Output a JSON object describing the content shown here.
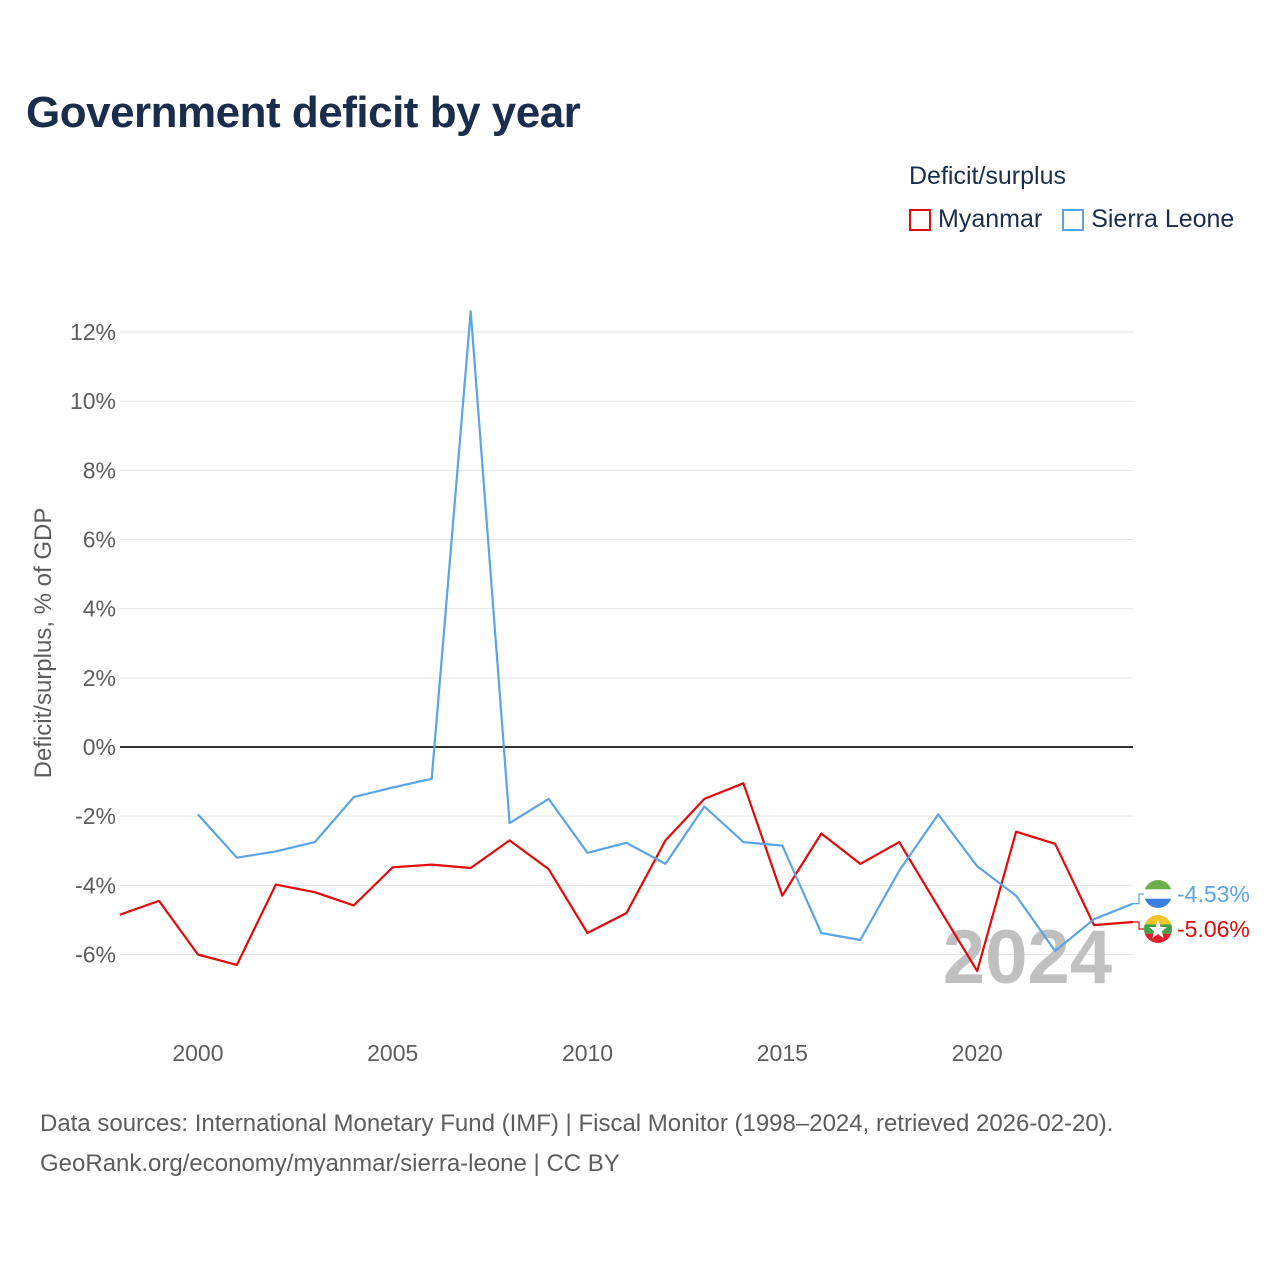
{
  "colors": {
    "myanmar": "#e30a0a",
    "sierra_leone": "#5ba4e6",
    "zero_line": "#333333",
    "grid": "#e6e6e6",
    "watermark": "#c0c0c0"
  },
  "chart_data": {
    "type": "line",
    "title": "Government deficit by year",
    "ylabel": "Deficit/surplus, % of GDP",
    "xlabel": "",
    "legend_title": "Deficit/surplus",
    "legend_position": "top-right",
    "xlim": [
      1998,
      2024
    ],
    "ylim": [
      -8,
      12.6
    ],
    "yticks": [
      -6,
      -4,
      -2,
      0,
      2,
      4,
      6,
      8,
      10,
      12
    ],
    "ytick_labels": [
      "-6%",
      "-4%",
      "-2%",
      "0%",
      "2%",
      "4%",
      "6%",
      "8%",
      "10%",
      "12%"
    ],
    "xticks": [
      2000,
      2005,
      2010,
      2015,
      2020
    ],
    "xtick_labels": [
      "2000",
      "2005",
      "2010",
      "2015",
      "2020"
    ],
    "grid": true,
    "year_watermark": "2024",
    "series": [
      {
        "name": "Myanmar",
        "key": "myanmar",
        "x": [
          1998,
          1999,
          2000,
          2001,
          2002,
          2003,
          2004,
          2005,
          2006,
          2007,
          2008,
          2009,
          2010,
          2011,
          2012,
          2013,
          2014,
          2015,
          2016,
          2017,
          2018,
          2019,
          2020,
          2021,
          2022,
          2023,
          2024
        ],
        "values": [
          -4.85,
          -4.45,
          -6.0,
          -6.3,
          -3.98,
          -4.2,
          -4.58,
          -3.48,
          -3.4,
          -3.5,
          -2.7,
          -3.53,
          -5.38,
          -4.8,
          -2.7,
          -1.5,
          -1.05,
          -4.3,
          -2.5,
          -3.38,
          -2.75,
          -4.62,
          -6.48,
          -2.45,
          -2.8,
          -5.15,
          -5.06
        ],
        "end_label": "-5.06%"
      },
      {
        "name": "Sierra Leone",
        "key": "sierra_leone",
        "x": [
          2000,
          2001,
          2002,
          2003,
          2004,
          2005,
          2006,
          2007,
          2008,
          2009,
          2010,
          2011,
          2012,
          2013,
          2014,
          2015,
          2016,
          2017,
          2018,
          2019,
          2020,
          2021,
          2022,
          2023,
          2024
        ],
        "values": [
          -1.95,
          -3.2,
          -3.02,
          -2.75,
          -1.45,
          -1.17,
          -0.92,
          12.6,
          -2.2,
          -1.5,
          -3.06,
          -2.77,
          -3.38,
          -1.72,
          -2.75,
          -2.85,
          -5.38,
          -5.58,
          -3.58,
          -1.95,
          -3.45,
          -4.3,
          -5.9,
          -4.98,
          -4.53
        ],
        "end_label": "-4.53%"
      }
    ]
  },
  "footer": {
    "line1": "Data sources: International Monetary Fund (IMF) | Fiscal Monitor (1998–2024, retrieved 2026-02-20).",
    "line2": "GeoRank.org/economy/myanmar/sierra-leone | CC BY"
  }
}
